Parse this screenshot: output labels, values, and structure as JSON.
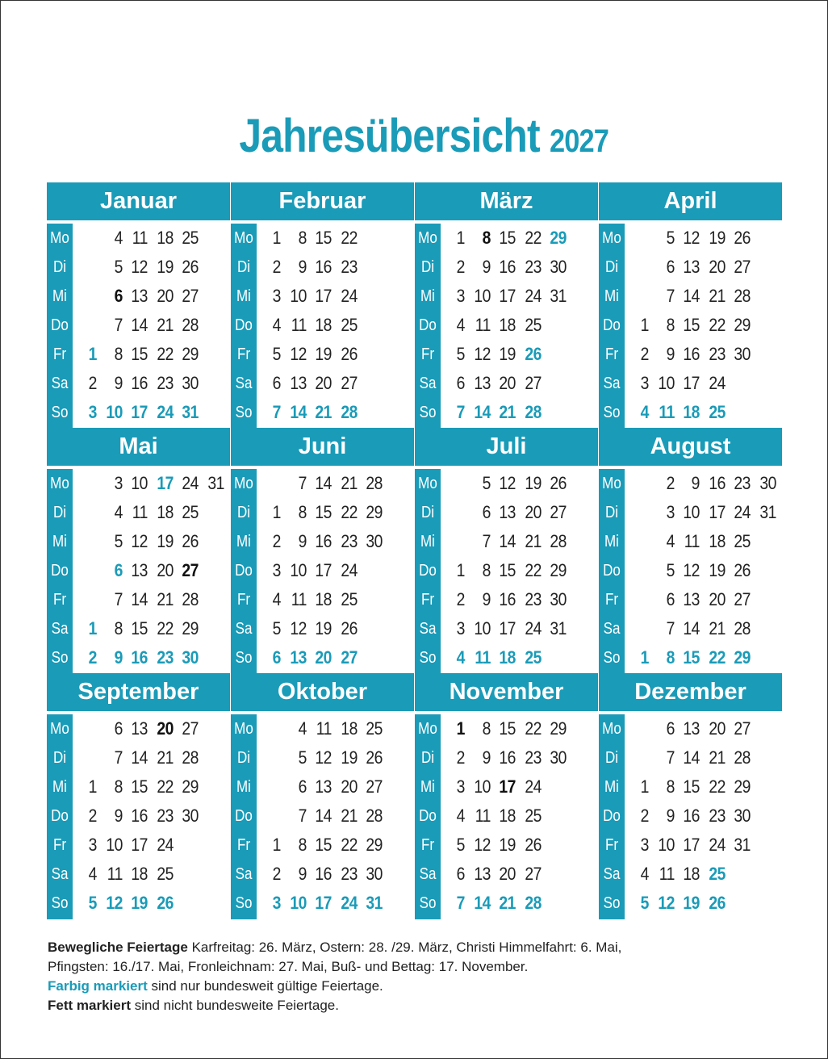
{
  "title": {
    "main": "Jahresübersicht",
    "year": "2027"
  },
  "colors": {
    "accent": "#1a9bb8",
    "text": "#222222"
  },
  "weekdays": [
    "Mo",
    "Di",
    "Mi",
    "Do",
    "Fr",
    "Sa",
    "So"
  ],
  "months": [
    {
      "name": "Januar",
      "rows": [
        [
          "",
          "4",
          "11",
          "18",
          "25"
        ],
        [
          "",
          "5",
          "12",
          "19",
          "26"
        ],
        [
          "",
          "6",
          "13",
          "20",
          "27"
        ],
        [
          "",
          "7",
          "14",
          "21",
          "28"
        ],
        [
          "1",
          "8",
          "15",
          "22",
          "29"
        ],
        [
          "2",
          "9",
          "16",
          "23",
          "30"
        ],
        [
          "3",
          "10",
          "17",
          "24",
          "31"
        ]
      ],
      "teal_days": [
        "1"
      ],
      "bold_days": [
        "6"
      ]
    },
    {
      "name": "Februar",
      "rows": [
        [
          "1",
          "8",
          "15",
          "22"
        ],
        [
          "2",
          "9",
          "16",
          "23"
        ],
        [
          "3",
          "10",
          "17",
          "24"
        ],
        [
          "4",
          "11",
          "18",
          "25"
        ],
        [
          "5",
          "12",
          "19",
          "26"
        ],
        [
          "6",
          "13",
          "20",
          "27"
        ],
        [
          "7",
          "14",
          "21",
          "28"
        ]
      ],
      "teal_days": [],
      "bold_days": []
    },
    {
      "name": "März",
      "rows": [
        [
          "1",
          "8",
          "15",
          "22",
          "29"
        ],
        [
          "2",
          "9",
          "16",
          "23",
          "30"
        ],
        [
          "3",
          "10",
          "17",
          "24",
          "31"
        ],
        [
          "4",
          "11",
          "18",
          "25"
        ],
        [
          "5",
          "12",
          "19",
          "26"
        ],
        [
          "6",
          "13",
          "20",
          "27"
        ],
        [
          "7",
          "14",
          "21",
          "28"
        ]
      ],
      "teal_days": [
        "29",
        "26"
      ],
      "bold_days": [
        "8"
      ]
    },
    {
      "name": "April",
      "rows": [
        [
          "",
          "5",
          "12",
          "19",
          "26"
        ],
        [
          "",
          "6",
          "13",
          "20",
          "27"
        ],
        [
          "",
          "7",
          "14",
          "21",
          "28"
        ],
        [
          "1",
          "8",
          "15",
          "22",
          "29"
        ],
        [
          "2",
          "9",
          "16",
          "23",
          "30"
        ],
        [
          "3",
          "10",
          "17",
          "24"
        ],
        [
          "4",
          "11",
          "18",
          "25"
        ]
      ],
      "teal_days": [],
      "bold_days": []
    },
    {
      "name": "Mai",
      "rows": [
        [
          "",
          "3",
          "10",
          "17",
          "24",
          "31"
        ],
        [
          "",
          "4",
          "11",
          "18",
          "25"
        ],
        [
          "",
          "5",
          "12",
          "19",
          "26"
        ],
        [
          "",
          "6",
          "13",
          "20",
          "27"
        ],
        [
          "",
          "7",
          "14",
          "21",
          "28"
        ],
        [
          "1",
          "8",
          "15",
          "22",
          "29"
        ],
        [
          "2",
          "9",
          "16",
          "23",
          "30"
        ]
      ],
      "teal_days": [
        "17",
        "6",
        "1"
      ],
      "bold_days": [
        "27"
      ]
    },
    {
      "name": "Juni",
      "rows": [
        [
          "",
          "7",
          "14",
          "21",
          "28"
        ],
        [
          "1",
          "8",
          "15",
          "22",
          "29"
        ],
        [
          "2",
          "9",
          "16",
          "23",
          "30"
        ],
        [
          "3",
          "10",
          "17",
          "24"
        ],
        [
          "4",
          "11",
          "18",
          "25"
        ],
        [
          "5",
          "12",
          "19",
          "26"
        ],
        [
          "6",
          "13",
          "20",
          "27"
        ]
      ],
      "teal_days": [],
      "bold_days": []
    },
    {
      "name": "Juli",
      "rows": [
        [
          "",
          "5",
          "12",
          "19",
          "26"
        ],
        [
          "",
          "6",
          "13",
          "20",
          "27"
        ],
        [
          "",
          "7",
          "14",
          "21",
          "28"
        ],
        [
          "1",
          "8",
          "15",
          "22",
          "29"
        ],
        [
          "2",
          "9",
          "16",
          "23",
          "30"
        ],
        [
          "3",
          "10",
          "17",
          "24",
          "31"
        ],
        [
          "4",
          "11",
          "18",
          "25"
        ]
      ],
      "teal_days": [],
      "bold_days": []
    },
    {
      "name": "August",
      "rows": [
        [
          "",
          "2",
          "9",
          "16",
          "23",
          "30"
        ],
        [
          "",
          "3",
          "10",
          "17",
          "24",
          "31"
        ],
        [
          "",
          "4",
          "11",
          "18",
          "25"
        ],
        [
          "",
          "5",
          "12",
          "19",
          "26"
        ],
        [
          "",
          "6",
          "13",
          "20",
          "27"
        ],
        [
          "",
          "7",
          "14",
          "21",
          "28"
        ],
        [
          "1",
          "8",
          "15",
          "22",
          "29"
        ]
      ],
      "teal_days": [],
      "bold_days": []
    },
    {
      "name": "September",
      "rows": [
        [
          "",
          "6",
          "13",
          "20",
          "27"
        ],
        [
          "",
          "7",
          "14",
          "21",
          "28"
        ],
        [
          "1",
          "8",
          "15",
          "22",
          "29"
        ],
        [
          "2",
          "9",
          "16",
          "23",
          "30"
        ],
        [
          "3",
          "10",
          "17",
          "24"
        ],
        [
          "4",
          "11",
          "18",
          "25"
        ],
        [
          "5",
          "12",
          "19",
          "26"
        ]
      ],
      "teal_days": [],
      "bold_days": [
        "20"
      ]
    },
    {
      "name": "Oktober",
      "rows": [
        [
          "",
          "4",
          "11",
          "18",
          "25"
        ],
        [
          "",
          "5",
          "12",
          "19",
          "26"
        ],
        [
          "",
          "6",
          "13",
          "20",
          "27"
        ],
        [
          "",
          "7",
          "14",
          "21",
          "28"
        ],
        [
          "1",
          "8",
          "15",
          "22",
          "29"
        ],
        [
          "2",
          "9",
          "16",
          "23",
          "30"
        ],
        [
          "3",
          "10",
          "17",
          "24",
          "31"
        ]
      ],
      "teal_days": [],
      "bold_days": []
    },
    {
      "name": "November",
      "rows": [
        [
          "1",
          "8",
          "15",
          "22",
          "29"
        ],
        [
          "2",
          "9",
          "16",
          "23",
          "30"
        ],
        [
          "3",
          "10",
          "17",
          "24"
        ],
        [
          "4",
          "11",
          "18",
          "25"
        ],
        [
          "5",
          "12",
          "19",
          "26"
        ],
        [
          "6",
          "13",
          "20",
          "27"
        ],
        [
          "7",
          "14",
          "21",
          "28"
        ]
      ],
      "teal_days": [],
      "bold_days": [
        "1",
        "17"
      ]
    },
    {
      "name": "Dezember",
      "rows": [
        [
          "",
          "6",
          "13",
          "20",
          "27"
        ],
        [
          "",
          "7",
          "14",
          "21",
          "28"
        ],
        [
          "1",
          "8",
          "15",
          "22",
          "29"
        ],
        [
          "2",
          "9",
          "16",
          "23",
          "30"
        ],
        [
          "3",
          "10",
          "17",
          "24",
          "31"
        ],
        [
          "4",
          "11",
          "18",
          "25"
        ],
        [
          "5",
          "12",
          "19",
          "26"
        ]
      ],
      "teal_days": [
        "25"
      ],
      "bold_days": []
    }
  ],
  "footer": {
    "movable_label": "Bewegliche Feiertage",
    "movable_text_1": " Karfreitag: 26. März, Ostern: 28. /29. März, Christi Himmelfahrt: 6. Mai,",
    "movable_text_2": "Pfingsten: 16./17. Mai, Fronleichnam: 27. Mai, Buß- und Bettag: 17. November.",
    "colored_label": "Farbig markiert",
    "colored_text": " sind nur bundesweit gültige Feiertage.",
    "bold_label": "Fett markiert",
    "bold_text": " sind nicht bundesweite Feiertage."
  }
}
